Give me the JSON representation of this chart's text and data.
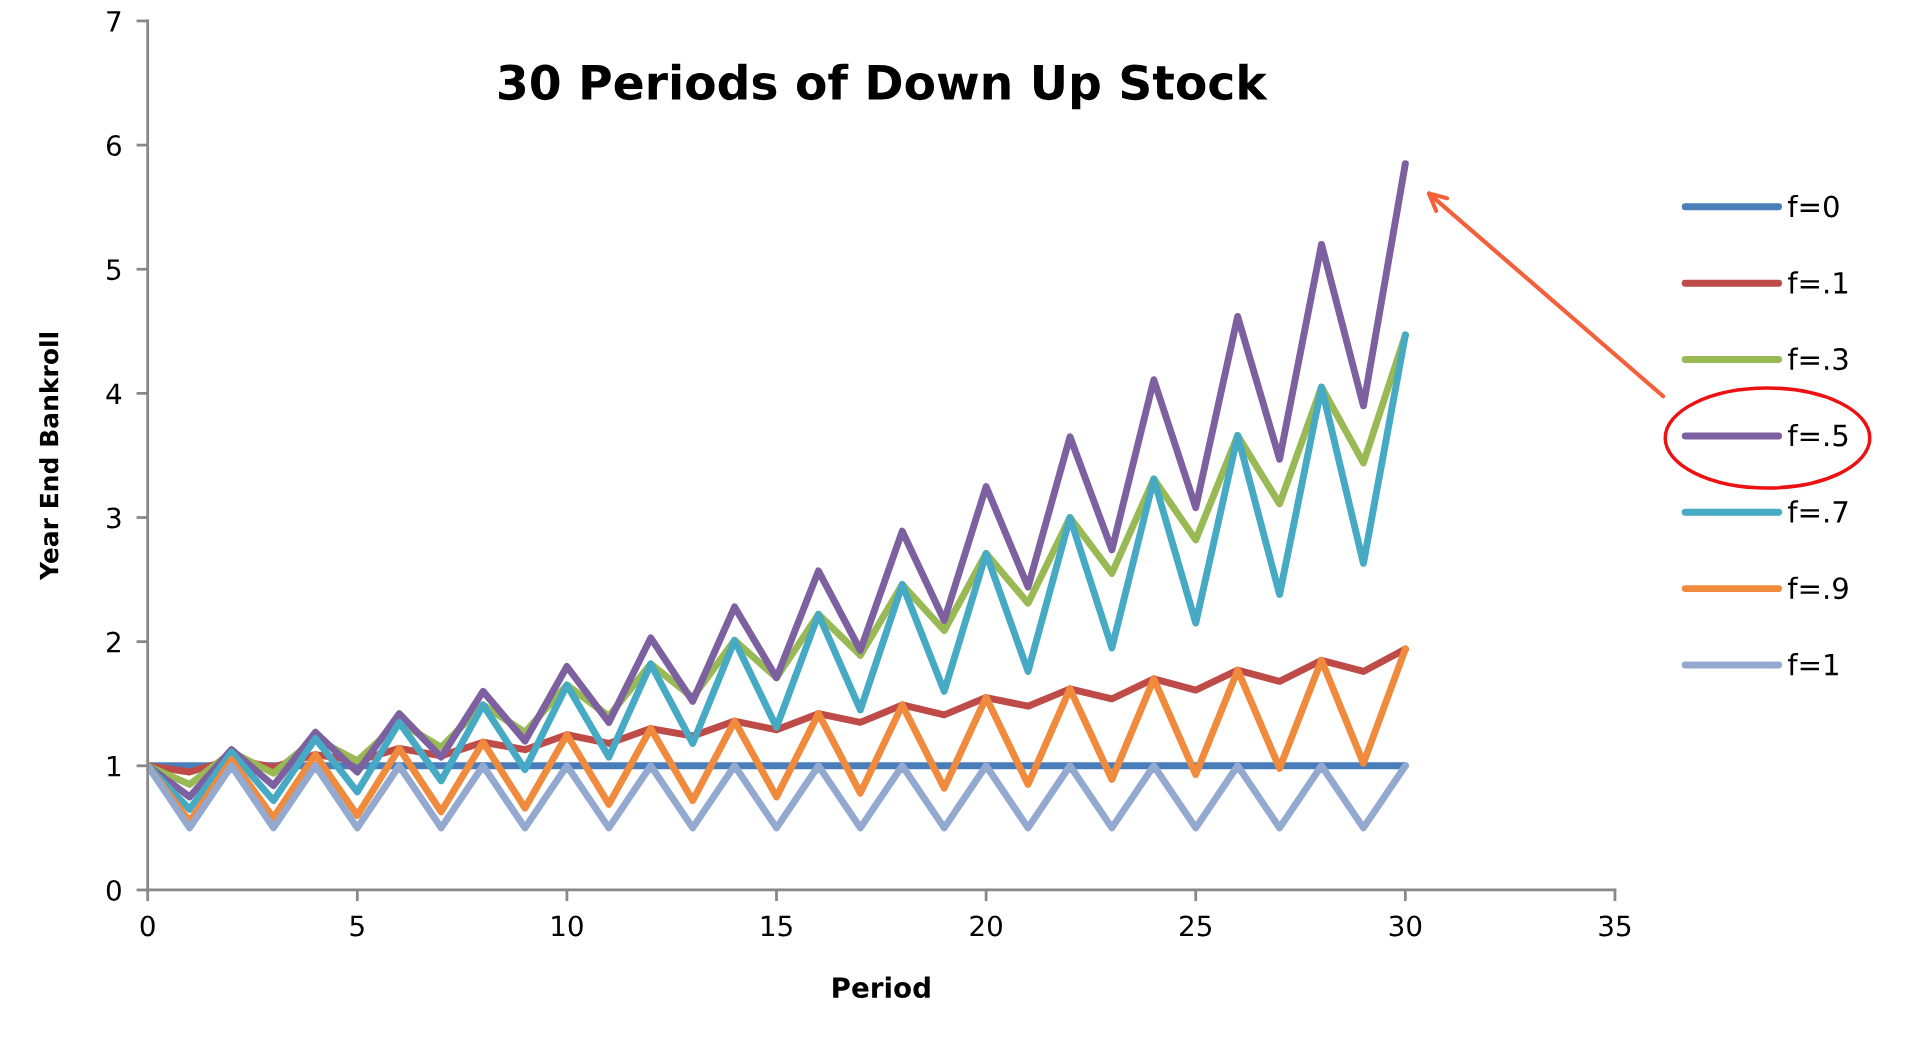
{
  "chart_data": {
    "type": "line",
    "title": "30 Periods of Down Up Stock",
    "xlabel": "Period",
    "ylabel": "Year End Bankroll",
    "x": [
      0,
      1,
      2,
      3,
      4,
      5,
      6,
      7,
      8,
      9,
      10,
      11,
      12,
      13,
      14,
      15,
      16,
      17,
      18,
      19,
      20,
      21,
      22,
      23,
      24,
      25,
      26,
      27,
      28,
      29,
      30
    ],
    "xlim": [
      0,
      35
    ],
    "xticks": [
      0,
      5,
      10,
      15,
      20,
      25,
      30,
      35
    ],
    "ylim": [
      0,
      7
    ],
    "yticks": [
      0,
      1,
      2,
      3,
      4,
      5,
      6,
      7
    ],
    "grid": false,
    "legend": "right",
    "marker": "none",
    "line_style": "solid",
    "series": [
      {
        "name": "f=0",
        "color": "#4a7ebb",
        "values": [
          1,
          1,
          1,
          1,
          1,
          1,
          1,
          1,
          1,
          1,
          1,
          1,
          1,
          1,
          1,
          1,
          1,
          1,
          1,
          1,
          1,
          1,
          1,
          1,
          1,
          1,
          1,
          1,
          1,
          1,
          1
        ]
      },
      {
        "name": "f=.1",
        "color": "#be4b48",
        "values": [
          1,
          0.95,
          1.05,
          0.99,
          1.09,
          1.04,
          1.14,
          1.08,
          1.19,
          1.13,
          1.25,
          1.18,
          1.3,
          1.24,
          1.36,
          1.29,
          1.42,
          1.35,
          1.49,
          1.41,
          1.55,
          1.48,
          1.62,
          1.54,
          1.7,
          1.61,
          1.77,
          1.68,
          1.85,
          1.76,
          1.94
        ]
      },
      {
        "name": "f=.3",
        "color": "#98b954",
        "values": [
          1,
          0.85,
          1.11,
          0.94,
          1.22,
          1.04,
          1.35,
          1.15,
          1.49,
          1.27,
          1.65,
          1.4,
          1.82,
          1.55,
          2.01,
          1.71,
          2.22,
          1.89,
          2.46,
          2.09,
          2.71,
          2.31,
          3,
          2.55,
          3.31,
          2.82,
          3.66,
          3.11,
          4.05,
          3.44,
          4.47
        ]
      },
      {
        "name": "f=.5",
        "color": "#7d60a0",
        "values": [
          1,
          0.75,
          1.13,
          0.84,
          1.27,
          0.95,
          1.42,
          1.07,
          1.6,
          1.2,
          1.8,
          1.35,
          2.03,
          1.52,
          2.28,
          1.71,
          2.57,
          1.93,
          2.89,
          2.17,
          3.25,
          2.44,
          3.65,
          2.74,
          4.11,
          3.08,
          4.62,
          3.47,
          5.2,
          3.9,
          5.85
        ]
      },
      {
        "name": "f=.7",
        "color": "#46aac5",
        "values": [
          1,
          0.65,
          1.11,
          0.72,
          1.22,
          0.79,
          1.35,
          0.88,
          1.49,
          0.97,
          1.65,
          1.07,
          1.82,
          1.18,
          2.01,
          1.31,
          2.22,
          1.45,
          2.46,
          1.6,
          2.71,
          1.76,
          3,
          1.95,
          3.31,
          2.15,
          3.66,
          2.38,
          4.05,
          2.63,
          4.47
        ]
      },
      {
        "name": "f=.9",
        "color": "#f08a3c",
        "values": [
          1,
          0.55,
          1.05,
          0.58,
          1.09,
          0.6,
          1.14,
          0.63,
          1.19,
          0.66,
          1.25,
          0.69,
          1.3,
          0.72,
          1.36,
          0.75,
          1.42,
          0.78,
          1.49,
          0.82,
          1.55,
          0.85,
          1.62,
          0.89,
          1.7,
          0.93,
          1.77,
          0.98,
          1.85,
          1.02,
          1.94
        ]
      },
      {
        "name": "f=1",
        "color": "#93a9d0",
        "values": [
          1,
          0.5,
          1,
          0.5,
          1,
          0.5,
          1,
          0.5,
          1,
          0.5,
          1,
          0.5,
          1,
          0.5,
          1,
          0.5,
          1,
          0.5,
          1,
          0.5,
          1,
          0.5,
          1,
          0.5,
          1,
          0.5,
          1,
          0.5,
          1,
          0.5,
          1
        ]
      }
    ]
  }
}
